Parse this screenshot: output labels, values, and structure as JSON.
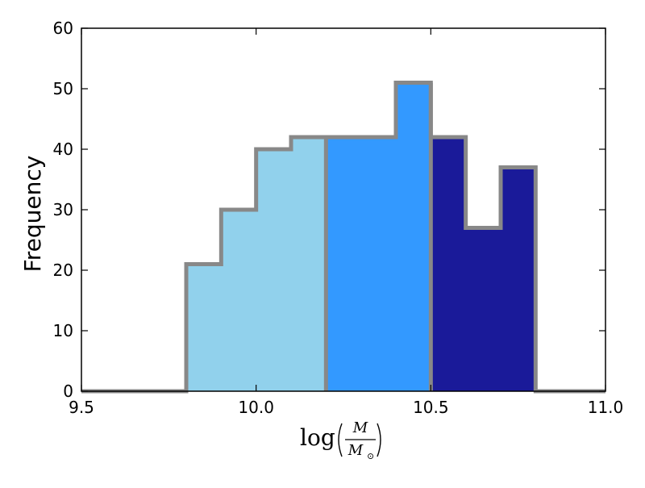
{
  "chart_data": {
    "type": "bar",
    "xlabel": "",
    "ylabel": "Frequency",
    "xlabel_math": {
      "prefix": "log",
      "numerator": "M",
      "denominator_base": "M",
      "denominator_sub": "⊙"
    },
    "xlim": [
      9.5,
      11.0
    ],
    "ylim": [
      0,
      60
    ],
    "xticks": [
      9.5,
      10.0,
      10.5,
      11.0
    ],
    "xtick_labels": [
      "9.5",
      "10.0",
      "10.5",
      "11.0"
    ],
    "yticks": [
      0,
      10,
      20,
      30,
      40,
      50,
      60
    ],
    "ytick_labels": [
      "0",
      "10",
      "20",
      "30",
      "40",
      "50",
      "60"
    ],
    "edges": [
      9.5,
      9.6,
      9.7,
      9.8,
      9.9,
      10.0,
      10.1,
      10.2,
      10.3,
      10.4,
      10.5,
      10.6,
      10.7,
      10.8,
      10.9,
      11.0
    ],
    "values": [
      0,
      0,
      0,
      21,
      30,
      40,
      42,
      42,
      42,
      51,
      42,
      27,
      37,
      0,
      0
    ],
    "groups": [
      {
        "range": [
          9.8,
          10.2
        ],
        "color": "#91d1ec"
      },
      {
        "range": [
          10.2,
          10.5
        ],
        "color": "#3399ff"
      },
      {
        "range": [
          10.5,
          10.8
        ],
        "color": "#1a1a99"
      }
    ],
    "outline_color": "#888888",
    "grid": false
  }
}
